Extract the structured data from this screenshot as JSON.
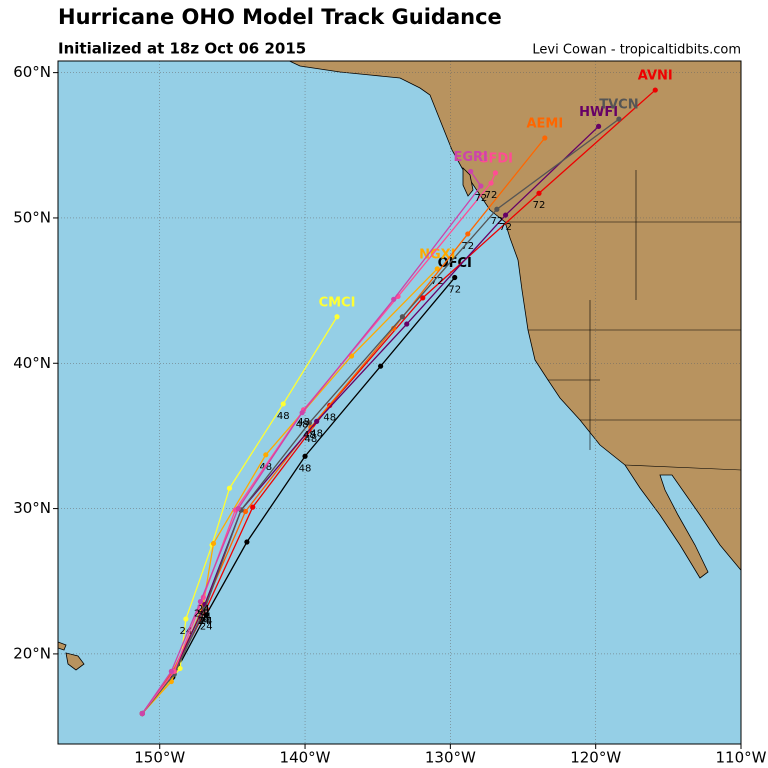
{
  "header": {
    "title": "Hurricane OHO Model Track Guidance",
    "subtitle": "Initialized at 18z Oct 06 2015",
    "credit": "Levi Cowan - tropicaltidbits.com"
  },
  "chart_data": {
    "type": "track-map",
    "xlim": [
      -157.0,
      -110.0
    ],
    "ylim": [
      13.8,
      60.8
    ],
    "xticks": [
      {
        "value": -150,
        "label": "150°W"
      },
      {
        "value": -140,
        "label": "140°W"
      },
      {
        "value": -130,
        "label": "130°W"
      },
      {
        "value": -120,
        "label": "120°W"
      },
      {
        "value": -110,
        "label": "110°W"
      }
    ],
    "yticks": [
      {
        "value": 20,
        "label": "20°N"
      },
      {
        "value": 30,
        "label": "30°N"
      },
      {
        "value": 40,
        "label": "40°N"
      },
      {
        "value": 50,
        "label": "50°N"
      },
      {
        "value": 60,
        "label": "60°N"
      }
    ],
    "grid": true,
    "tracks": [
      {
        "name": "OFCI",
        "color": "#000000",
        "lon": [
          -151.2,
          -149.1,
          -146.8,
          -144.0,
          -140.0,
          -134.8,
          -129.7
        ],
        "lat": [
          15.9,
          18.4,
          22.7,
          27.7,
          33.6,
          39.8,
          45.9
        ],
        "hours": [
          null,
          null,
          24,
          null,
          48,
          null,
          72
        ]
      },
      {
        "name": "AVNI",
        "color": "#ee0000",
        "lon": [
          -151.2,
          -149.0,
          -146.8,
          -143.6,
          -138.3,
          -131.9,
          -123.9,
          -115.9
        ],
        "lat": [
          15.9,
          18.8,
          23.1,
          30.1,
          37.1,
          44.5,
          51.7,
          58.8
        ],
        "hours": [
          null,
          null,
          24,
          null,
          48,
          null,
          72,
          null
        ]
      },
      {
        "name": "CMCI",
        "color": "#ffff33",
        "lon": [
          -151.2,
          -148.6,
          -148.2,
          -146.4,
          -145.2,
          -141.5,
          -137.8
        ],
        "lat": [
          15.9,
          19.0,
          22.4,
          27.5,
          31.4,
          37.2,
          43.2
        ],
        "hours": [
          null,
          null,
          24,
          null,
          null,
          48,
          null
        ]
      },
      {
        "name": "NGXI",
        "color": "#ffaa00",
        "lon": [
          -151.2,
          -149.2,
          -147.0,
          -146.3,
          -142.7,
          -136.8,
          -130.9
        ],
        "lat": [
          15.9,
          18.1,
          23.4,
          27.6,
          33.7,
          40.5,
          46.5
        ],
        "hours": [
          null,
          null,
          24,
          null,
          48,
          null,
          72
        ]
      },
      {
        "name": "AEMI",
        "color": "#ff6600",
        "lon": [
          -151.2,
          -149.1,
          -147.0,
          -144.1,
          -139.6,
          -133.9,
          -128.8,
          -123.5
        ],
        "lat": [
          15.9,
          18.8,
          23.1,
          29.8,
          35.6,
          42.4,
          48.9,
          55.5
        ],
        "hours": [
          null,
          null,
          24,
          null,
          48,
          null,
          72,
          null
        ]
      },
      {
        "name": "HWFI",
        "color": "#660066",
        "lon": [
          -151.2,
          -149.0,
          -146.9,
          -144.4,
          -139.2,
          -133.0,
          -126.2,
          -119.8
        ],
        "lat": [
          15.9,
          18.8,
          23.4,
          29.9,
          36.0,
          42.7,
          50.2,
          56.3
        ],
        "hours": [
          null,
          null,
          24,
          null,
          48,
          null,
          72,
          null
        ]
      },
      {
        "name": "TVCN",
        "color": "#555555",
        "lon": [
          -151.2,
          -149.0,
          -146.9,
          -144.4,
          -139.7,
          -133.3,
          -126.8,
          -118.4
        ],
        "lat": [
          15.9,
          18.6,
          23.1,
          29.9,
          35.9,
          43.2,
          50.6,
          56.8
        ],
        "hours": [
          null,
          null,
          24,
          null,
          48,
          null,
          72,
          null
        ]
      },
      {
        "name": "GFDI",
        "color": "#ff4d94",
        "lon": [
          -151.2,
          -149.0,
          -147.0,
          -144.8,
          -140.1,
          -133.6,
          -127.2,
          -126.9
        ],
        "lat": [
          15.9,
          18.8,
          23.9,
          29.9,
          36.8,
          44.6,
          52.4,
          53.1
        ],
        "hours": [
          null,
          null,
          24,
          null,
          48,
          null,
          72,
          null
        ]
      },
      {
        "name": "EGRI",
        "color": "#cc44aa",
        "lon": [
          -151.2,
          -149.2,
          -147.2,
          -144.6,
          -140.2,
          -133.9,
          -127.9,
          -128.6
        ],
        "lat": [
          15.9,
          18.8,
          23.6,
          30.0,
          36.6,
          44.4,
          52.2,
          53.2
        ],
        "hours": [
          null,
          null,
          24,
          null,
          48,
          null,
          72,
          null
        ]
      }
    ]
  }
}
